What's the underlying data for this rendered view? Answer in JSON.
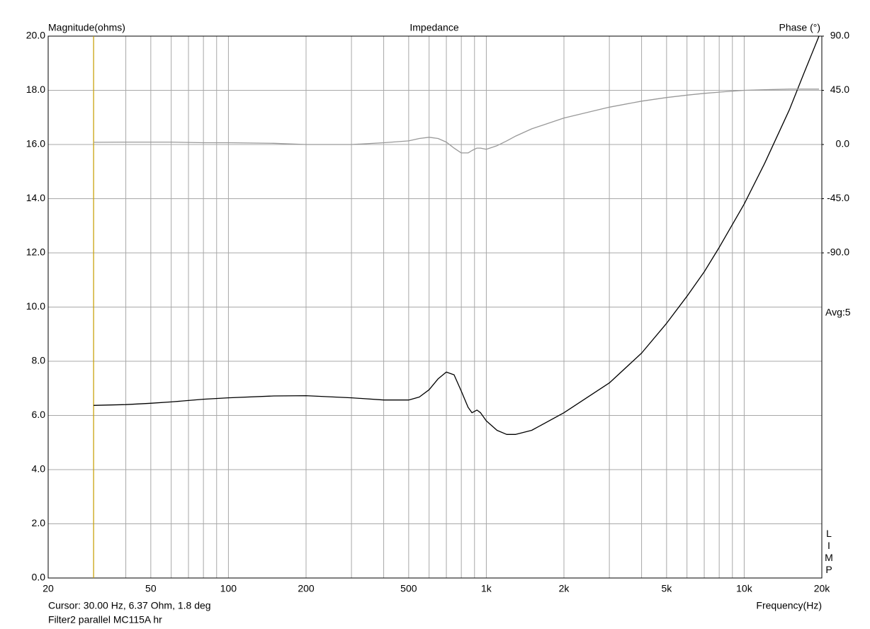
{
  "chart_data": {
    "type": "line",
    "title": "Impedance",
    "ylabel": "Magnitude(ohms)",
    "y2label": "Phase (°)",
    "xlabel": "Frequency(Hz)",
    "cursor_text": "Cursor: 30.00 Hz, 6.37 Ohm, 1.8 deg",
    "file_text": "Filter2 parallel MC115A hr",
    "avg_text": "Avg:5",
    "watermark": "LIMP",
    "cursor_x": 30,
    "cursor_color": "#c8a000",
    "log_x": true,
    "grid": true,
    "xlim": [
      20,
      20000
    ],
    "xticks": [
      20,
      50,
      100,
      200,
      500,
      {
        "value": 1000,
        "label": "1k"
      },
      {
        "value": 2000,
        "label": "2k"
      },
      {
        "value": 5000,
        "label": "5k"
      },
      {
        "value": 10000,
        "label": "10k"
      },
      {
        "value": 20000,
        "label": "20k"
      }
    ],
    "xminor": [
      30,
      40,
      60,
      70,
      80,
      90,
      300,
      400,
      600,
      700,
      800,
      900,
      3000,
      4000,
      6000,
      7000,
      8000,
      9000
    ],
    "ylim": [
      0,
      20
    ],
    "yticks": [
      {
        "value": 0,
        "label": "0.0"
      },
      {
        "value": 2,
        "label": "2.0"
      },
      {
        "value": 4,
        "label": "4.0"
      },
      {
        "value": 6,
        "label": "6.0"
      },
      {
        "value": 8,
        "label": "8.0"
      },
      {
        "value": 10,
        "label": "10.0"
      },
      {
        "value": 12,
        "label": "12.0"
      },
      {
        "value": 14,
        "label": "14.0"
      },
      {
        "value": 16,
        "label": "16.0"
      },
      {
        "value": 18,
        "label": "18.0"
      },
      {
        "value": 20,
        "label": "20.0"
      }
    ],
    "y2lim": [
      -360,
      90
    ],
    "y2ticks": [
      {
        "value": 90,
        "label": "90.0"
      },
      {
        "value": 45,
        "label": "45.0"
      },
      {
        "value": 0,
        "label": "0.0"
      },
      {
        "value": -45,
        "label": "-45.0"
      },
      {
        "value": -90,
        "label": "-90.0"
      }
    ],
    "x": [
      30,
      40,
      50,
      60,
      80,
      100,
      150,
      200,
      300,
      400,
      500,
      550,
      600,
      650,
      700,
      750,
      800,
      850,
      880,
      920,
      950,
      1000,
      1100,
      1200,
      1300,
      1500,
      2000,
      3000,
      4000,
      5000,
      6000,
      7000,
      8000,
      10000,
      12000,
      15000,
      17000,
      19500
    ],
    "series": [
      {
        "color": "#000000",
        "values": [
          6.37,
          6.4,
          6.45,
          6.5,
          6.6,
          6.65,
          6.72,
          6.73,
          6.65,
          6.57,
          6.57,
          6.68,
          6.95,
          7.35,
          7.6,
          7.5,
          6.9,
          6.3,
          6.1,
          6.2,
          6.1,
          5.8,
          5.45,
          5.3,
          5.3,
          5.45,
          6.1,
          7.2,
          8.3,
          9.4,
          10.4,
          11.3,
          12.2,
          13.8,
          15.3,
          17.3,
          18.6,
          20.0
        ]
      },
      {
        "color": "#999999",
        "axis": "y2",
        "values": [
          1.8,
          2,
          2,
          2,
          1.5,
          1.5,
          1,
          0,
          0,
          1.5,
          3,
          5,
          6,
          5,
          2,
          -3,
          -7,
          -7,
          -5,
          -3,
          -3,
          -4,
          -1,
          3,
          7,
          13,
          22,
          31,
          36,
          39,
          41,
          42.5,
          43.5,
          45,
          45.5,
          46,
          46,
          46
        ]
      }
    ]
  }
}
